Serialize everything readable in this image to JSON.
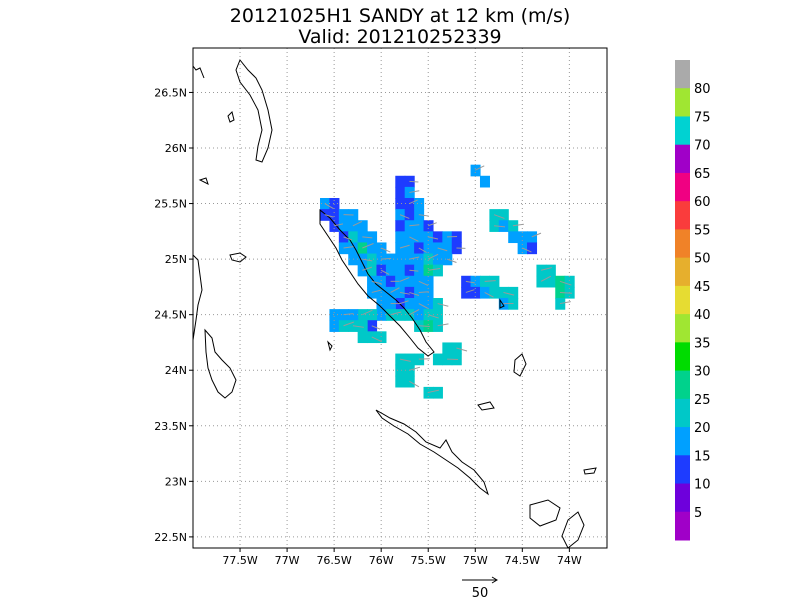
{
  "title": {
    "line1": "20121025H1 SANDY at 12 km (m/s)",
    "line2": "Valid: 201210252339"
  },
  "map": {
    "lon_range": [
      -78.0,
      -73.6
    ],
    "lat_range": [
      22.4,
      26.9
    ],
    "lon_ticks": [
      {
        "value": -77.5,
        "label": "77.5W"
      },
      {
        "value": -77.0,
        "label": "77W"
      },
      {
        "value": -76.5,
        "label": "76.5W"
      },
      {
        "value": -76.0,
        "label": "76W"
      },
      {
        "value": -75.5,
        "label": "75.5W"
      },
      {
        "value": -75.0,
        "label": "75W"
      },
      {
        "value": -74.5,
        "label": "74.5W"
      },
      {
        "value": -74.0,
        "label": "74W"
      }
    ],
    "lat_ticks": [
      {
        "value": 22.5,
        "label": "22.5N"
      },
      {
        "value": 23.0,
        "label": "23N"
      },
      {
        "value": 23.5,
        "label": "23.5N"
      },
      {
        "value": 24.0,
        "label": "24N"
      },
      {
        "value": 24.5,
        "label": "24.5N"
      },
      {
        "value": 25.0,
        "label": "25N"
      },
      {
        "value": 25.5,
        "label": "25.5N"
      },
      {
        "value": 26.0,
        "label": "26N"
      },
      {
        "value": 26.5,
        "label": "26.5N"
      }
    ],
    "grid": true,
    "coast_color": "#000000",
    "vector_color": "#9a9a9a"
  },
  "colorbar": {
    "labels": [
      "5",
      "10",
      "15",
      "20",
      "25",
      "30",
      "35",
      "40",
      "45",
      "50",
      "55",
      "60",
      "65",
      "70",
      "75",
      "80"
    ],
    "colors": [
      "#a000c8",
      "#6e00dc",
      "#1e3cff",
      "#00a0ff",
      "#00c8c8",
      "#00d28c",
      "#00dc00",
      "#a0e632",
      "#e6dc32",
      "#e6af2d",
      "#f08228",
      "#fa3c3c",
      "#f00082",
      "#a000c8",
      "#00d2d2",
      "#a0e632",
      "#aaaaaa"
    ]
  },
  "reference_vector": {
    "label": "50"
  },
  "chart_data": {
    "type": "heatmap",
    "title": "20121025H1 SANDY at 12 km (m/s)",
    "subtitle": "Valid: 201210252339",
    "units": "m/s",
    "cell_deg": 0.1,
    "cells_note": "each cell: lon (deg E), lat (deg N), wind speed class (m/s)",
    "cells": [
      [
        -76.6,
        25.5,
        15
      ],
      [
        -76.5,
        25.5,
        10
      ],
      [
        -76.6,
        25.4,
        10
      ],
      [
        -76.5,
        25.4,
        10
      ],
      [
        -76.4,
        25.4,
        15
      ],
      [
        -76.3,
        25.4,
        15
      ],
      [
        -76.5,
        25.3,
        10
      ],
      [
        -76.4,
        25.3,
        15
      ],
      [
        -76.3,
        25.3,
        15
      ],
      [
        -76.2,
        25.3,
        15
      ],
      [
        -76.4,
        25.2,
        10
      ],
      [
        -76.3,
        25.2,
        20
      ],
      [
        -76.2,
        25.2,
        15
      ],
      [
        -76.1,
        25.2,
        15
      ],
      [
        -76.4,
        25.1,
        15
      ],
      [
        -76.3,
        25.1,
        15
      ],
      [
        -76.2,
        25.1,
        25
      ],
      [
        -76.1,
        25.1,
        15
      ],
      [
        -76.0,
        25.1,
        15
      ],
      [
        -76.3,
        25.0,
        15
      ],
      [
        -76.2,
        25.0,
        15
      ],
      [
        -76.1,
        25.0,
        20
      ],
      [
        -76.0,
        25.0,
        15
      ],
      [
        -75.9,
        25.0,
        15
      ],
      [
        -76.2,
        24.9,
        15
      ],
      [
        -76.1,
        24.9,
        20
      ],
      [
        -76.0,
        24.9,
        10
      ],
      [
        -75.9,
        24.9,
        15
      ],
      [
        -76.1,
        24.8,
        15
      ],
      [
        -76.0,
        24.8,
        15
      ],
      [
        -75.9,
        24.8,
        10
      ],
      [
        -75.8,
        24.8,
        15
      ],
      [
        -76.1,
        24.7,
        15
      ],
      [
        -76.0,
        24.7,
        15
      ],
      [
        -75.9,
        24.7,
        15
      ],
      [
        -75.8,
        24.7,
        15
      ],
      [
        -75.7,
        24.7,
        15
      ],
      [
        -75.8,
        25.7,
        10
      ],
      [
        -75.7,
        25.7,
        10
      ],
      [
        -75.8,
        25.6,
        10
      ],
      [
        -75.7,
        25.6,
        15
      ],
      [
        -75.8,
        25.5,
        10
      ],
      [
        -75.7,
        25.5,
        10
      ],
      [
        -75.6,
        25.5,
        15
      ],
      [
        -75.8,
        25.4,
        15
      ],
      [
        -75.7,
        25.4,
        10
      ],
      [
        -75.6,
        25.4,
        15
      ],
      [
        -75.8,
        25.3,
        10
      ],
      [
        -75.7,
        25.3,
        15
      ],
      [
        -75.6,
        25.3,
        15
      ],
      [
        -75.5,
        25.3,
        10
      ],
      [
        -75.8,
        25.2,
        15
      ],
      [
        -75.7,
        25.2,
        15
      ],
      [
        -75.6,
        25.2,
        15
      ],
      [
        -75.5,
        25.2,
        15
      ],
      [
        -75.4,
        25.2,
        10
      ],
      [
        -75.3,
        25.2,
        15
      ],
      [
        -75.2,
        25.2,
        10
      ],
      [
        -75.8,
        25.1,
        15
      ],
      [
        -75.7,
        25.1,
        15
      ],
      [
        -75.6,
        25.1,
        10
      ],
      [
        -75.5,
        25.1,
        15
      ],
      [
        -75.4,
        25.1,
        15
      ],
      [
        -75.3,
        25.1,
        15
      ],
      [
        -75.2,
        25.1,
        10
      ],
      [
        -75.8,
        25.0,
        15
      ],
      [
        -75.7,
        25.0,
        15
      ],
      [
        -75.6,
        25.0,
        15
      ],
      [
        -75.5,
        25.0,
        20
      ],
      [
        -75.4,
        25.0,
        15
      ],
      [
        -75.3,
        25.0,
        15
      ],
      [
        -75.8,
        24.9,
        15
      ],
      [
        -75.7,
        24.9,
        10
      ],
      [
        -75.6,
        24.9,
        15
      ],
      [
        -75.5,
        24.9,
        25
      ],
      [
        -75.4,
        24.9,
        20
      ],
      [
        -75.8,
        24.8,
        15
      ],
      [
        -75.7,
        24.8,
        15
      ],
      [
        -75.6,
        24.8,
        15
      ],
      [
        -75.5,
        24.8,
        15
      ],
      [
        -75.8,
        24.7,
        15
      ],
      [
        -75.7,
        24.7,
        10
      ],
      [
        -75.6,
        24.7,
        15
      ],
      [
        -75.5,
        24.7,
        15
      ],
      [
        -75.8,
        24.6,
        10
      ],
      [
        -75.7,
        24.6,
        15
      ],
      [
        -75.6,
        24.6,
        15
      ],
      [
        -75.5,
        24.6,
        15
      ],
      [
        -75.4,
        24.6,
        20
      ],
      [
        -76.0,
        24.6,
        15
      ],
      [
        -75.9,
        24.6,
        15
      ],
      [
        -76.0,
        24.5,
        15
      ],
      [
        -75.9,
        24.5,
        20
      ],
      [
        -75.8,
        24.5,
        20
      ],
      [
        -75.7,
        24.5,
        20
      ],
      [
        -75.6,
        24.5,
        15
      ],
      [
        -75.5,
        24.5,
        20
      ],
      [
        -75.4,
        24.5,
        20
      ],
      [
        -75.6,
        24.4,
        20
      ],
      [
        -75.5,
        24.4,
        25
      ],
      [
        -75.4,
        24.4,
        20
      ],
      [
        -76.1,
        24.5,
        20
      ],
      [
        -76.2,
        24.5,
        20
      ],
      [
        -76.3,
        24.5,
        15
      ],
      [
        -76.1,
        24.4,
        10
      ],
      [
        -76.2,
        24.4,
        20
      ],
      [
        -76.3,
        24.4,
        20
      ],
      [
        -76.5,
        24.5,
        15
      ],
      [
        -76.4,
        24.5,
        15
      ],
      [
        -76.5,
        24.4,
        15
      ],
      [
        -76.4,
        24.4,
        20
      ],
      [
        -76.0,
        24.3,
        20
      ],
      [
        -76.1,
        24.3,
        20
      ],
      [
        -76.2,
        24.3,
        20
      ],
      [
        -75.8,
        24.1,
        20
      ],
      [
        -75.7,
        24.1,
        20
      ],
      [
        -75.6,
        24.1,
        20
      ],
      [
        -75.8,
        24.0,
        20
      ],
      [
        -75.7,
        24.0,
        20
      ],
      [
        -75.8,
        23.9,
        20
      ],
      [
        -75.7,
        23.9,
        20
      ],
      [
        -75.3,
        24.2,
        20
      ],
      [
        -75.2,
        24.2,
        20
      ],
      [
        -75.4,
        24.1,
        20
      ],
      [
        -75.3,
        24.1,
        20
      ],
      [
        -75.2,
        24.1,
        20
      ],
      [
        -75.5,
        23.8,
        20
      ],
      [
        -75.4,
        23.8,
        20
      ],
      [
        -75.0,
        25.8,
        15
      ],
      [
        -74.9,
        25.7,
        15
      ],
      [
        -74.8,
        25.4,
        20
      ],
      [
        -74.7,
        25.4,
        20
      ],
      [
        -74.8,
        25.3,
        20
      ],
      [
        -74.7,
        25.3,
        15
      ],
      [
        -74.6,
        25.3,
        20
      ],
      [
        -74.5,
        25.2,
        15
      ],
      [
        -74.4,
        25.2,
        15
      ],
      [
        -74.6,
        25.2,
        15
      ],
      [
        -74.5,
        25.1,
        15
      ],
      [
        -74.4,
        25.1,
        10
      ],
      [
        -75.1,
        24.8,
        10
      ],
      [
        -75.0,
        24.8,
        15
      ],
      [
        -74.9,
        24.8,
        20
      ],
      [
        -74.8,
        24.8,
        20
      ],
      [
        -75.1,
        24.7,
        10
      ],
      [
        -75.0,
        24.7,
        10
      ],
      [
        -74.9,
        24.7,
        15
      ],
      [
        -74.8,
        24.7,
        20
      ],
      [
        -74.7,
        24.7,
        20
      ],
      [
        -74.6,
        24.7,
        20
      ],
      [
        -74.7,
        24.6,
        15
      ],
      [
        -74.6,
        24.6,
        20
      ],
      [
        -74.3,
        24.9,
        20
      ],
      [
        -74.2,
        24.9,
        20
      ],
      [
        -74.3,
        24.8,
        20
      ],
      [
        -74.2,
        24.8,
        20
      ],
      [
        -74.1,
        24.8,
        25
      ],
      [
        -74.0,
        24.8,
        20
      ],
      [
        -74.1,
        24.7,
        25
      ],
      [
        -74.0,
        24.7,
        20
      ],
      [
        -74.1,
        24.6,
        20
      ]
    ]
  }
}
